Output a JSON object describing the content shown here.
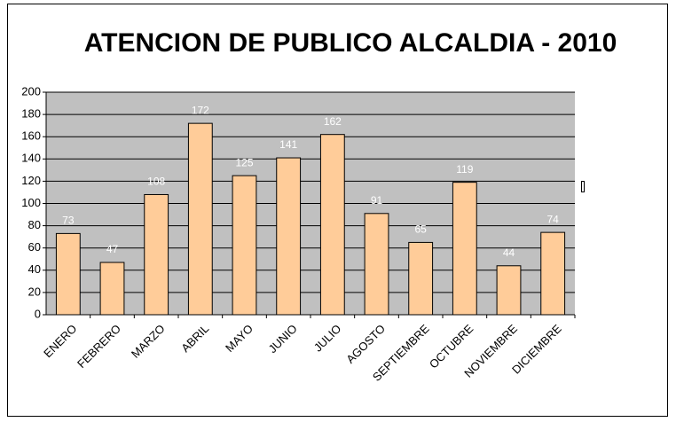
{
  "chart_data": {
    "type": "bar",
    "title": "ATENCION DE PUBLICO ALCALDIA - 2010",
    "categories": [
      "ENERO",
      "FEBRERO",
      "MARZO",
      "ABRIL",
      "MAYO",
      "JUNIO",
      "JULIO",
      "AGOSTO",
      "SEPTIEMBRE",
      "OCTUBRE",
      "NOVIEMBRE",
      "DICIEMBRE"
    ],
    "values": [
      73,
      47,
      108,
      172,
      125,
      141,
      162,
      91,
      65,
      119,
      44,
      74
    ],
    "color": "#ffcc99",
    "ylim": [
      0,
      200
    ],
    "yticks": [
      0,
      20,
      40,
      60,
      80,
      100,
      120,
      140,
      160,
      180,
      200
    ],
    "grid": true
  }
}
